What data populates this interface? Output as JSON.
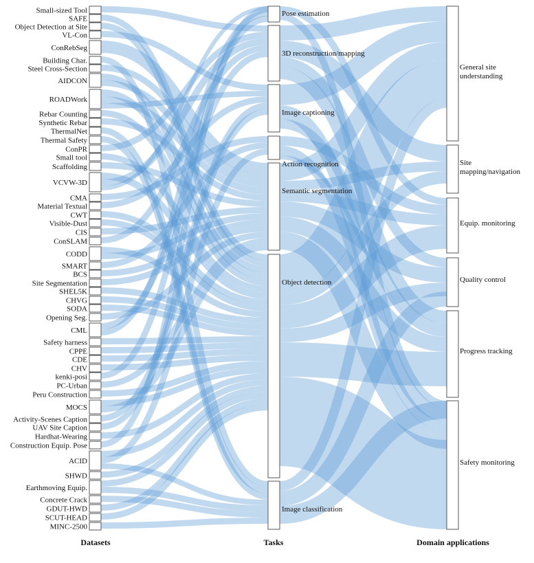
{
  "columns": {
    "datasets": "Datasets",
    "tasks": "Tasks",
    "domains": "Domain applications"
  },
  "colors": {
    "link": "#5b9bd5",
    "node_fill": "#ffffff",
    "node_stroke": "#555555"
  },
  "datasets": [
    "Small-sized Tool",
    "SAFE",
    "Object Detection at Site",
    "VL-Con",
    "ConRebSeg",
    "Building Char.",
    "Steel Cross-Section",
    "AIDCON",
    "ROADWork",
    "Rebar Counting",
    "Synthetic Rebar",
    "ThermalNet",
    "Thermal Safety",
    "ConPR",
    "Small tool",
    "Scaffolding",
    "VCVW-3D",
    "CMA",
    "Material Textual",
    "CWT",
    "Visible-Dust",
    "CIS",
    "ConSLAM",
    "CODD",
    "SMART",
    "BCS",
    "Site Segmentation",
    "SHEL5K",
    "CHVG",
    "SODA",
    "Opening Seg.",
    "CML",
    "Safety harness",
    "CPPE",
    "CDE",
    "CHV",
    "kenki-posi",
    "PC-Urban",
    "Peru Construction",
    "MOCS",
    "Activity-Scenes Caption",
    "UAV Site Caption",
    "Hardhat-Wearing",
    "Construction Equip. Pose",
    "ACID",
    "SHWD",
    "Earthmoving Equip.",
    "Concrete Crack",
    "GDUT-HWD",
    "SCUT-HEAD",
    "MINC-2500"
  ],
  "tasks": [
    "Pose estimation",
    "3D reconstruction/mapping",
    "Image captioning",
    "Action recognition",
    "Semantic segmentation",
    "Object detection",
    "Image classification"
  ],
  "domains": [
    "General site understanding",
    "Site mapping/navigation",
    "Equip. monitoring",
    "Quality control",
    "Progress tracking",
    "Safety monitoring"
  ]
}
